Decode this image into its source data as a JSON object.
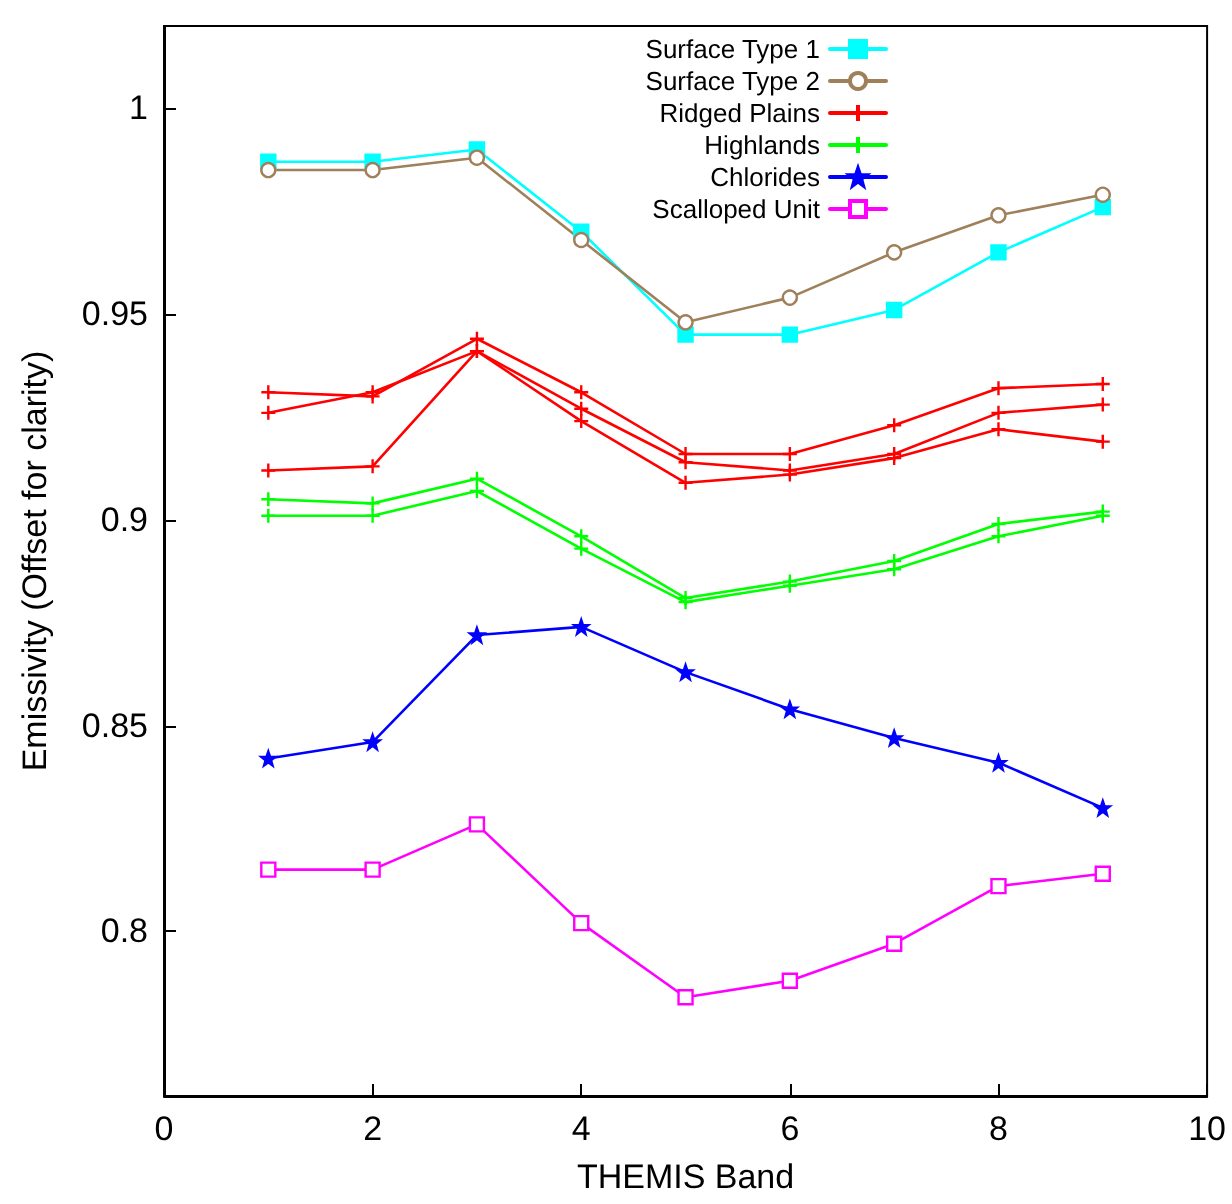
{
  "chart_data": {
    "type": "line",
    "xlabel": "THEMIS Band",
    "ylabel": "Emissivity (Offset for clarity)",
    "x": [
      1,
      2,
      3,
      4,
      5,
      6,
      7,
      8,
      9
    ],
    "xlim": [
      0,
      10
    ],
    "xticks": [
      0,
      2,
      4,
      6,
      8,
      10
    ],
    "ylim": [
      0.76,
      1.02
    ],
    "yticks": [
      0.8,
      0.85,
      0.9,
      0.95,
      1
    ],
    "grid": false,
    "legend": "top",
    "line_style": "solid",
    "series": [
      {
        "name": "Surface Type 1",
        "color": "#00ffff",
        "marker": "square",
        "values": [
          0.987,
          0.987,
          0.99,
          0.97,
          0.945,
          0.945,
          0.951,
          0.965,
          0.976
        ]
      },
      {
        "name": "Surface Type 2",
        "color": "#a0805a",
        "marker": "circle",
        "values": [
          0.985,
          0.985,
          0.988,
          0.968,
          0.948,
          0.954,
          0.965,
          0.974,
          0.979
        ]
      },
      {
        "name": "Ridged Plains",
        "color": "#ff0000",
        "marker": "cross",
        "values": [
          0.931,
          0.93,
          0.944,
          0.931,
          0.916,
          0.916,
          0.923,
          0.932,
          0.933
        ]
      },
      {
        "name": "Highlands",
        "color": "#00ff00",
        "marker": "cross",
        "values": [
          0.905,
          0.904,
          0.91,
          0.896,
          0.881,
          0.885,
          0.89,
          0.899,
          0.902
        ]
      },
      {
        "name": "Chlorides",
        "color": "#0000ff",
        "marker": "star",
        "values": [
          0.842,
          0.846,
          0.872,
          0.874,
          0.863,
          0.854,
          0.847,
          0.841,
          0.83
        ]
      },
      {
        "name": "Scalloped Unit",
        "color": "#ff00ff",
        "marker": "square",
        "values": [
          0.815,
          0.815,
          0.826,
          0.802,
          0.784,
          0.788,
          0.797,
          0.811,
          0.814
        ]
      },
      {
        "color": "#ff0000",
        "marker": "cross",
        "values": [
          0.926,
          0.931,
          0.941,
          0.927,
          0.914,
          0.912,
          0.916,
          0.926,
          0.928
        ]
      },
      {
        "color": "#ff0000",
        "marker": "cross",
        "values": [
          0.912,
          0.913,
          0.941,
          0.924,
          0.909,
          0.911,
          0.915,
          0.922,
          0.919
        ]
      },
      {
        "color": "#00ff00",
        "marker": "cross",
        "values": [
          0.901,
          0.901,
          0.907,
          0.893,
          0.88,
          0.884,
          0.888,
          0.896,
          0.901
        ]
      }
    ]
  }
}
